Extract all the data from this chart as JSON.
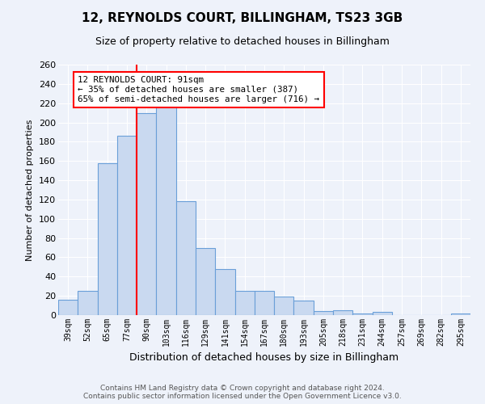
{
  "title": "12, REYNOLDS COURT, BILLINGHAM, TS23 3GB",
  "subtitle": "Size of property relative to detached houses in Billingham",
  "xlabel": "Distribution of detached houses by size in Billingham",
  "ylabel": "Number of detached properties",
  "categories": [
    "39sqm",
    "52sqm",
    "65sqm",
    "77sqm",
    "90sqm",
    "103sqm",
    "116sqm",
    "129sqm",
    "141sqm",
    "154sqm",
    "167sqm",
    "180sqm",
    "193sqm",
    "205sqm",
    "218sqm",
    "231sqm",
    "244sqm",
    "257sqm",
    "269sqm",
    "282sqm",
    "295sqm"
  ],
  "values": [
    16,
    25,
    158,
    186,
    210,
    230,
    118,
    70,
    48,
    25,
    25,
    19,
    15,
    4,
    5,
    2,
    3,
    0,
    0,
    0,
    2
  ],
  "bar_color": "#c9d9f0",
  "bar_edge_color": "#6a9fd8",
  "red_line_index": 4,
  "annotation_text": "12 REYNOLDS COURT: 91sqm\n← 35% of detached houses are smaller (387)\n65% of semi-detached houses are larger (716) →",
  "annotation_box_color": "white",
  "annotation_box_edge_color": "red",
  "ylim": [
    0,
    260
  ],
  "yticks": [
    0,
    20,
    40,
    60,
    80,
    100,
    120,
    140,
    160,
    180,
    200,
    220,
    240,
    260
  ],
  "footer_line1": "Contains HM Land Registry data © Crown copyright and database right 2024.",
  "footer_line2": "Contains public sector information licensed under the Open Government Licence v3.0.",
  "background_color": "#eef2fa",
  "grid_color": "white",
  "title_fontsize": 11,
  "subtitle_fontsize": 9,
  "ylabel_fontsize": 8,
  "xlabel_fontsize": 9,
  "tick_fontsize": 7,
  "footer_fontsize": 6.5
}
